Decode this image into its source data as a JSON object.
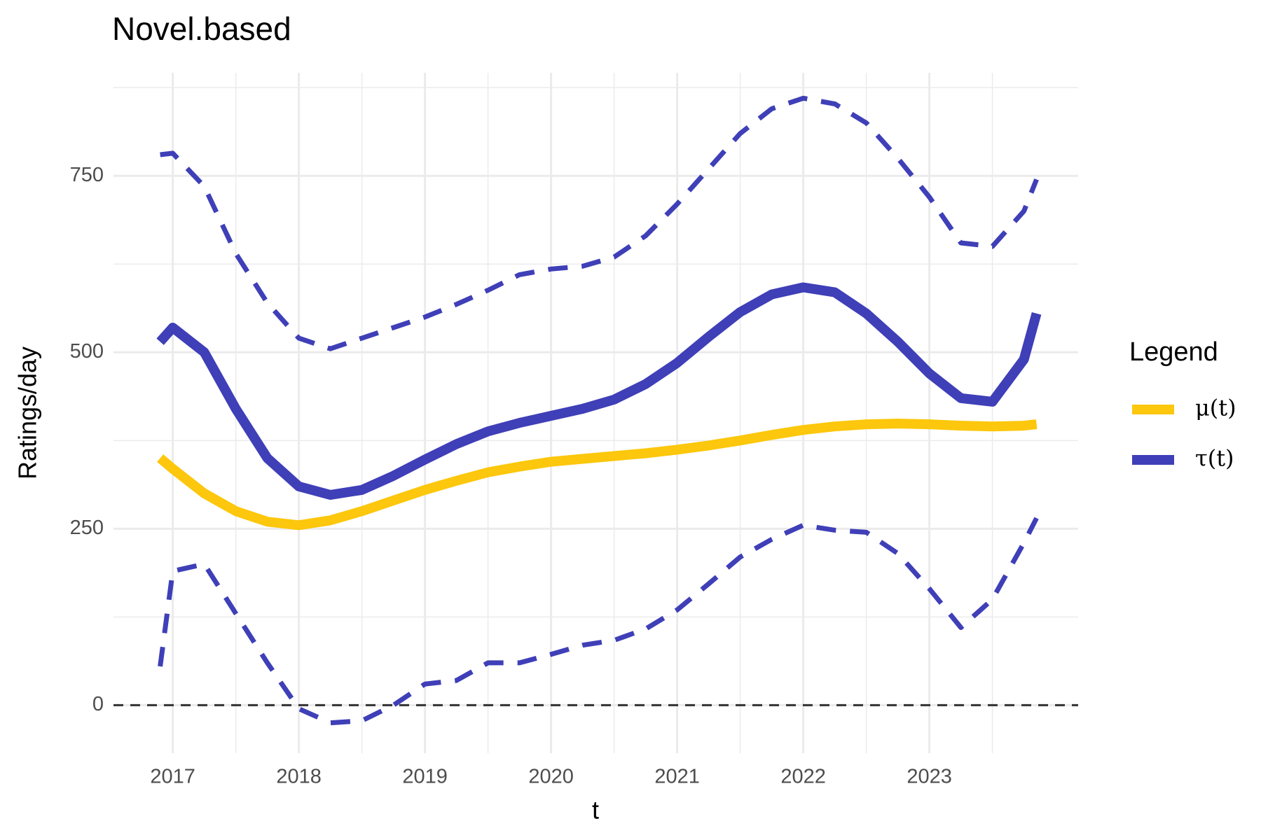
{
  "chart_data": {
    "type": "line",
    "title": "Novel.based",
    "x_label": "t",
    "y_label": "Ratings/day",
    "legend_title": "Legend",
    "legend_position": "right",
    "grid": true,
    "x": [
      2016.9,
      2017,
      2017.25,
      2017.5,
      2017.75,
      2018,
      2018.25,
      2018.5,
      2018.75,
      2019,
      2019.25,
      2019.5,
      2019.75,
      2020,
      2020.25,
      2020.5,
      2020.75,
      2021,
      2021.25,
      2021.5,
      2021.75,
      2022,
      2022.25,
      2022.5,
      2022.75,
      2023,
      2023.25,
      2023.5,
      2023.75,
      2023.85
    ],
    "series": [
      {
        "name": "μ(t)",
        "color": "#fcc70c",
        "values": [
          350,
          335,
          300,
          275,
          260,
          255,
          262,
          275,
          290,
          305,
          318,
          330,
          338,
          345,
          349,
          353,
          357,
          362,
          368,
          375,
          383,
          390,
          395,
          398,
          399,
          398,
          396,
          395,
          396,
          398
        ]
      },
      {
        "name": "τ(t)",
        "color": "#3f3fb8",
        "values": [
          515,
          535,
          500,
          420,
          350,
          310,
          298,
          305,
          325,
          348,
          370,
          388,
          400,
          410,
          420,
          433,
          455,
          485,
          522,
          557,
          582,
          592,
          585,
          555,
          515,
          470,
          435,
          430,
          490,
          555
        ]
      }
    ],
    "band": {
      "color": "#3f3fb8",
      "dashed": true,
      "upper": [
        780,
        782,
        735,
        640,
        570,
        520,
        505,
        520,
        535,
        550,
        568,
        588,
        610,
        618,
        622,
        635,
        665,
        710,
        760,
        810,
        845,
        860,
        852,
        825,
        775,
        720,
        655,
        650,
        700,
        745
      ],
      "lower": [
        55,
        190,
        200,
        130,
        60,
        -5,
        -25,
        -22,
        0,
        30,
        35,
        60,
        60,
        72,
        85,
        92,
        108,
        135,
        172,
        210,
        235,
        255,
        248,
        245,
        215,
        165,
        110,
        150,
        230,
        265
      ]
    },
    "hline": 0,
    "xlim": [
      2016.53,
      2024.18
    ],
    "xticks": [
      2017,
      2018,
      2019,
      2020,
      2021,
      2022,
      2023
    ],
    "ylim": [
      -68,
      896
    ],
    "yticks": [
      0,
      250,
      500,
      750
    ]
  }
}
